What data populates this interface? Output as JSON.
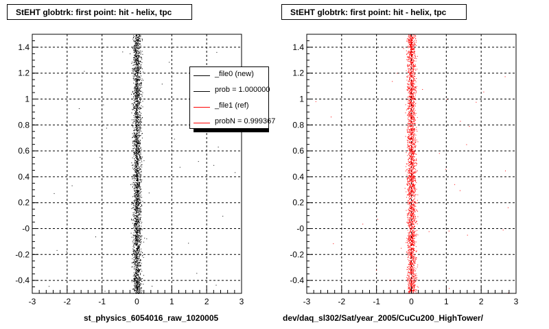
{
  "colors": {
    "new": "#000000",
    "ref": "#ff0000",
    "grid": "#000000",
    "frame": "#000000"
  },
  "footnote": "",
  "chart_data": [
    {
      "type": "scatter",
      "title": "StEHT globtrk: first point: hit - helix, tpc",
      "xlabel": "st_physics_6054016_raw_1020005",
      "ylabel": "",
      "xlim": [
        -3,
        3
      ],
      "ylim": [
        -0.5,
        1.5
      ],
      "x_ticks": [
        "-3",
        "-2",
        "-1",
        "0",
        "1",
        "2",
        "3"
      ],
      "y_ticks": [
        "-0.4",
        "-0.2",
        "-0",
        "0.2",
        "0.4",
        "0.6",
        "0.8",
        "1",
        "1.2",
        "1.4"
      ],
      "grid": true,
      "series": [
        {
          "color": "#000000",
          "center_x": 0.0,
          "spread_x": 0.09
        }
      ],
      "legend": {
        "placement": "top-right",
        "entries": [
          {
            "label": "_file0 (new)",
            "color": "#000000"
          },
          {
            "label": "prob = 1.000000",
            "color": "#000000"
          },
          {
            "label": "_file1 (ref)",
            "color": "#ff0000"
          },
          {
            "label": "probN = 0.999367",
            "color": "#ff0000"
          }
        ]
      }
    },
    {
      "type": "scatter",
      "title": "StEHT globtrk: first point: hit - helix, tpc",
      "xlabel": "dev/daq_sl302/Sat/year_2005/CuCu200_HighTower/",
      "ylabel": "",
      "xlim": [
        -3,
        3
      ],
      "ylim": [
        -0.5,
        1.5
      ],
      "x_ticks": [
        "-3",
        "-2",
        "-1",
        "0",
        "1",
        "2",
        "3"
      ],
      "y_ticks": [
        "-0.4",
        "-0.2",
        "-0",
        "0.2",
        "0.4",
        "0.6",
        "0.8",
        "1",
        "1.2",
        "1.4"
      ],
      "grid": true,
      "series": [
        {
          "color": "#ff0000",
          "center_x": 0.0,
          "spread_x": 0.09
        }
      ]
    }
  ]
}
